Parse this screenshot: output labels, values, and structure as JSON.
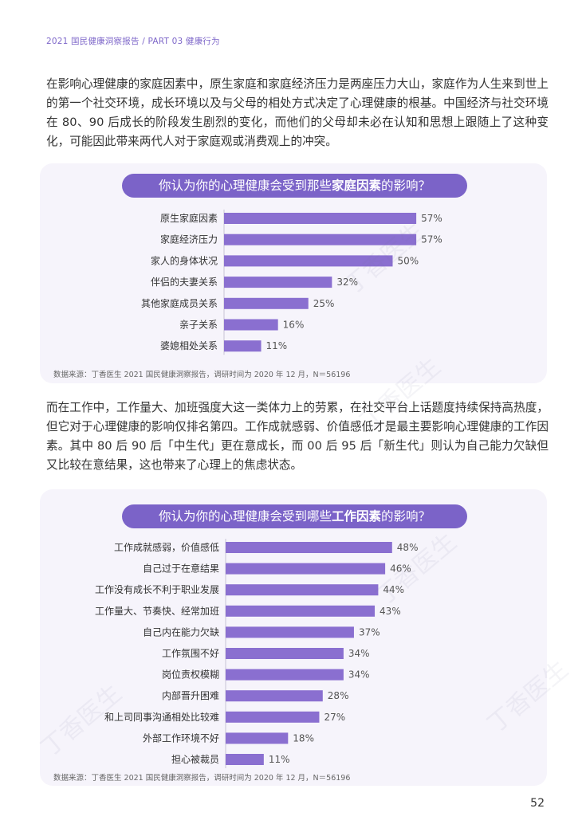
{
  "header": "2021 国民健康洞察报告 / PART 03 健康行为",
  "paragraph1": "在影响心理健康的家庭因素中，原生家庭和家庭经济压力是两座压力大山，家庭作为人生来到世上的第一个社交环境，成长环境以及与父母的相处方式决定了心理健康的根基。中国经济与社交环境在 80、90 后成长的阶段发生剧烈的变化，而他们的父母却未必在认知和思想上跟随上了这种变化，可能因此带来两代人对于家庭观或消费观上的冲突。",
  "paragraph2": "而在工作中，工作量大、加班强度大这一类体力上的劳累，在社交平台上话题度持续保持高热度，但它对于心理健康的影响仅排名第四。工作成就感弱、价值感低才是最主要影响心理健康的工作因素。其中 80 后 90 后「中生代」更在意成长，而 00 后 95 后「新生代」则认为自己能力欠缺但又比较在意结果，这也带来了心理上的焦虑状态。",
  "page_number": "52",
  "watermark": "丁香医生",
  "chart_data": [
    {
      "type": "bar",
      "orientation": "horizontal",
      "title_prefix": "你认为你的心理健康会受到那些",
      "title_highlight": "家庭因素",
      "title_suffix": "的影响？",
      "categories": [
        "原生家庭因素",
        "家庭经济压力",
        "家人的身体状况",
        "伴侣的夫妻关系",
        "其他家庭成员关系",
        "亲子关系",
        "婆媳相处关系"
      ],
      "values": [
        57,
        57,
        50,
        32,
        25,
        16,
        11
      ],
      "value_labels": [
        "57%",
        "57%",
        "50%",
        "32%",
        "25%",
        "16%",
        "11%"
      ],
      "unit": "%",
      "color": "#8a6fd0",
      "source": "数据来源：丁香医生 2021 国民健康洞察报告，调研时间为 2020 年 12 月，N＝56196"
    },
    {
      "type": "bar",
      "orientation": "horizontal",
      "title_prefix": "你认为你的心理健康会受到哪些",
      "title_highlight": "工作因素",
      "title_suffix": "的影响？",
      "categories": [
        "工作成就感弱，价值感低",
        "自己过于在意结果",
        "工作没有成长不利于职业发展",
        "工作量大、节奏快、经常加班",
        "自己内在能力欠缺",
        "工作氛围不好",
        "岗位责权模糊",
        "内部晋升困难",
        "和上司同事沟通相处比较难",
        "外部工作环境不好",
        "担心被裁员"
      ],
      "values": [
        48,
        46,
        44,
        43,
        37,
        34,
        34,
        28,
        27,
        18,
        11
      ],
      "value_labels": [
        "48%",
        "46%",
        "44%",
        "43%",
        "37%",
        "34%",
        "34%",
        "28%",
        "27%",
        "18%",
        "11%"
      ],
      "unit": "%",
      "color": "#8a6fd0",
      "source": "数据来源：丁香医生 2021 国民健康洞察报告，调研时间为 2020 年 12 月，N＝56196"
    }
  ]
}
